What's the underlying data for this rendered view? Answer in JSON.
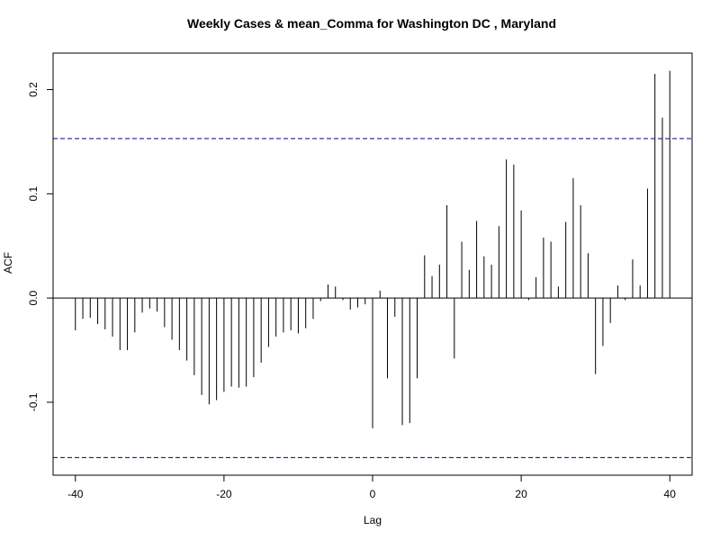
{
  "chart_data": {
    "type": "bar",
    "title": "Weekly Cases & mean_Comma for Washington DC , Maryland",
    "xlabel": "Lag",
    "ylabel": "ACF",
    "xlim": [
      -43,
      43
    ],
    "ylim": [
      -0.17,
      0.235
    ],
    "x_ticks": [
      -40,
      -20,
      0,
      20,
      40
    ],
    "x_tick_labels": [
      "-40",
      "-20",
      "0",
      "20",
      "40"
    ],
    "y_ticks": [
      -0.1,
      0.0,
      0.1,
      0.2
    ],
    "y_tick_labels": [
      "-0.1",
      "0.0",
      "0.1",
      "0.2"
    ],
    "grid": false,
    "confidence_limit": 0.153,
    "confidence_line_color": "#000080",
    "bar_color": "#000000",
    "lags": [
      -40,
      -39,
      -38,
      -37,
      -36,
      -35,
      -34,
      -33,
      -32,
      -31,
      -30,
      -29,
      -28,
      -27,
      -26,
      -25,
      -24,
      -23,
      -22,
      -21,
      -20,
      -19,
      -18,
      -17,
      -16,
      -15,
      -14,
      -13,
      -12,
      -11,
      -10,
      -9,
      -8,
      -7,
      -6,
      -5,
      -4,
      -3,
      -2,
      -1,
      0,
      1,
      2,
      3,
      4,
      5,
      6,
      7,
      8,
      9,
      10,
      11,
      12,
      13,
      14,
      15,
      16,
      17,
      18,
      19,
      20,
      21,
      22,
      23,
      24,
      25,
      26,
      27,
      28,
      29,
      30,
      31,
      32,
      33,
      34,
      35,
      36,
      37,
      38,
      39,
      40
    ],
    "acf": [
      -0.031,
      -0.02,
      -0.019,
      -0.025,
      -0.03,
      -0.037,
      -0.05,
      -0.05,
      -0.033,
      -0.014,
      -0.01,
      -0.013,
      -0.028,
      -0.04,
      -0.05,
      -0.06,
      -0.074,
      -0.093,
      -0.102,
      -0.098,
      -0.09,
      -0.085,
      -0.086,
      -0.085,
      -0.076,
      -0.062,
      -0.047,
      -0.037,
      -0.033,
      -0.031,
      -0.034,
      -0.029,
      -0.02,
      -0.003,
      0.013,
      0.011,
      -0.002,
      -0.011,
      -0.009,
      -0.006,
      -0.125,
      0.007,
      -0.077,
      -0.018,
      -0.122,
      -0.12,
      -0.077,
      0.041,
      0.021,
      0.032,
      0.089,
      -0.058,
      0.054,
      0.027,
      0.074,
      0.04,
      0.032,
      0.069,
      0.133,
      0.128,
      0.084,
      -0.002,
      0.02,
      0.058,
      0.054,
      0.011,
      0.073,
      0.115,
      0.089,
      0.043,
      -0.073,
      -0.046,
      -0.024,
      0.012,
      -0.002,
      0.037,
      0.012,
      0.105,
      0.215,
      0.173,
      0.218
    ]
  }
}
